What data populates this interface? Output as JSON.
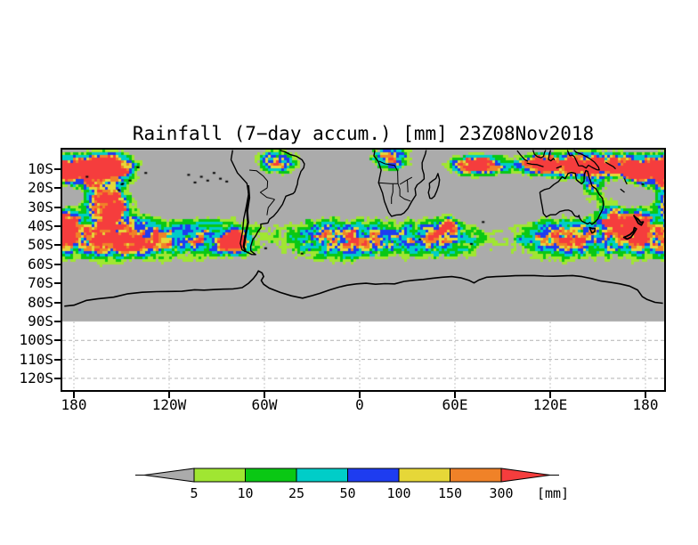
{
  "title": "Rainfall (7−day accum.) [mm] 23Z08Nov2018",
  "axes": {
    "y": {
      "labels": [
        "10S",
        "20S",
        "30S",
        "40S",
        "50S",
        "60S",
        "70S",
        "80S",
        "90S",
        "100S",
        "110S",
        "120S"
      ]
    },
    "x": {
      "labels": [
        "180",
        "120W",
        "60W",
        "0",
        "60E",
        "120E",
        "180"
      ]
    }
  },
  "colorbar": {
    "tick_labels": [
      "5",
      "10",
      "25",
      "50",
      "100",
      "150",
      "300"
    ],
    "units_label": "[mm]"
  },
  "map": {
    "background_color": "#ababab",
    "no_data_color": "#ffffff",
    "coastline_color": "#000000",
    "gridline_color": "#b2b2b2"
  },
  "chart_data": {
    "type": "heatmap",
    "title": "Rainfall (7−day accum.) [mm] 23Z08Nov2018",
    "units": "mm",
    "levels_mm": [
      5,
      10,
      25,
      50,
      100,
      150,
      300
    ],
    "palette": [
      {
        "range": "< 5",
        "color": "#ababab"
      },
      {
        "range": "5-10",
        "color": "#a0e632"
      },
      {
        "range": "10-25",
        "color": "#0ac814"
      },
      {
        "range": "25-50",
        "color": "#00cdc8"
      },
      {
        "range": "50-100",
        "color": "#1e3cf0"
      },
      {
        "range": "100-150",
        "color": "#e6d738"
      },
      {
        "range": "150-300",
        "color": "#f08228"
      },
      {
        "range": "> 300",
        "color": "#f53d3d"
      }
    ],
    "x_ticks": [
      "180",
      "120W",
      "60W",
      "0",
      "60E",
      "120E",
      "180"
    ],
    "y_ticks": [
      "10S",
      "20S",
      "30S",
      "40S",
      "50S",
      "60S",
      "70S",
      "80S",
      "90S",
      "100S",
      "110S",
      "120S"
    ],
    "grid": "dotted gridlines visible only south of 90S (no-data white band)",
    "legend_position": "horizontal colorbar below plot with under/over arrows",
    "features": [
      "Zonal storm-track band of 5-100 mm rainfall circling the Southern Ocean between roughly 30S and 62S",
      "Heavy rain cluster (150-300+ mm) in the South Pacific near 160W, 5S-35S",
      "Rain over the Amazon basin and coastal Brazil (10-100 mm)",
      "Rain band over the Congo basin / central-southern Africa",
      "Orange ITCZ band (150-300 mm) across the tropical Indian Ocean near 5-12S from 50E to 100E",
      "Heavy tropical rain from Indonesia/New Guinea across the far western Pacific (110E-180)",
      "Intense cell (300+ mm) in the Tasman/NZ region east of New Zealand near 175E, 40S",
      "Heavy rain west of southern Chile near 78W, 50S",
      "Dry (< 5 mm, gray) subtropical regions: SE Pacific, South Atlantic, interior Australia, and Antarctica south of ~65S",
      "Blank white no-data band plotted from 90S to beyond 120S"
    ]
  }
}
